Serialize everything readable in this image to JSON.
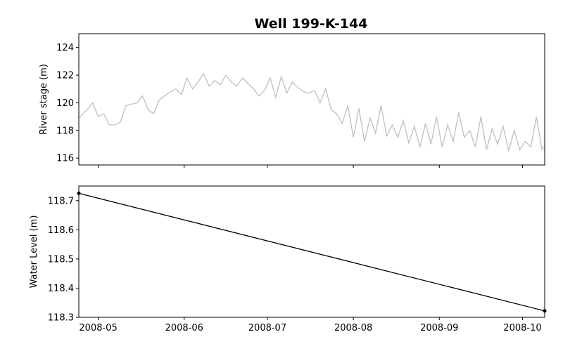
{
  "chart_data": {
    "title": "Well 199-K-144",
    "type": "line",
    "x_tick_labels": [
      "2008-05",
      "2008-06",
      "2008-07",
      "2008-08",
      "2008-09",
      "2008-10"
    ],
    "x_range": [
      "2008-04-24",
      "2008-10-09"
    ],
    "panels": [
      {
        "name": "river-stage",
        "ylabel": "River stage (m)",
        "ylim": [
          115.5,
          125.0
        ],
        "yticks": [
          116,
          118,
          120,
          122,
          124
        ],
        "color": "#bfbfbf",
        "series": {
          "x": [
            "2008-04-24",
            "2008-04-27",
            "2008-04-29",
            "2008-05-01",
            "2008-05-03",
            "2008-05-05",
            "2008-05-07",
            "2008-05-09",
            "2008-05-11",
            "2008-05-13",
            "2008-05-15",
            "2008-05-17",
            "2008-05-19",
            "2008-05-21",
            "2008-05-23",
            "2008-05-25",
            "2008-05-27",
            "2008-05-29",
            "2008-05-31",
            "2008-06-02",
            "2008-06-04",
            "2008-06-06",
            "2008-06-08",
            "2008-06-10",
            "2008-06-12",
            "2008-06-14",
            "2008-06-16",
            "2008-06-18",
            "2008-06-20",
            "2008-06-22",
            "2008-06-24",
            "2008-06-26",
            "2008-06-28",
            "2008-06-30",
            "2008-07-02",
            "2008-07-04",
            "2008-07-06",
            "2008-07-08",
            "2008-07-10",
            "2008-07-12",
            "2008-07-14",
            "2008-07-16",
            "2008-07-18",
            "2008-07-20",
            "2008-07-22",
            "2008-07-24",
            "2008-07-26",
            "2008-07-28",
            "2008-07-30",
            "2008-08-01",
            "2008-08-03",
            "2008-08-05",
            "2008-08-07",
            "2008-08-09",
            "2008-08-11",
            "2008-08-13",
            "2008-08-15",
            "2008-08-17",
            "2008-08-19",
            "2008-08-21",
            "2008-08-23",
            "2008-08-25",
            "2008-08-27",
            "2008-08-29",
            "2008-08-31",
            "2008-09-02",
            "2008-09-04",
            "2008-09-06",
            "2008-09-08",
            "2008-09-10",
            "2008-09-12",
            "2008-09-14",
            "2008-09-16",
            "2008-09-18",
            "2008-09-20",
            "2008-09-22",
            "2008-09-24",
            "2008-09-26",
            "2008-09-28",
            "2008-09-30",
            "2008-10-02",
            "2008-10-04",
            "2008-10-06",
            "2008-10-08",
            "2008-10-09"
          ],
          "y": [
            118.9,
            119.5,
            120.0,
            119.0,
            119.2,
            118.4,
            118.4,
            118.6,
            119.8,
            119.9,
            120.0,
            120.5,
            119.5,
            119.2,
            120.2,
            120.5,
            120.8,
            121.0,
            120.6,
            121.8,
            121.0,
            121.5,
            122.1,
            121.2,
            121.6,
            121.3,
            122.0,
            121.5,
            121.2,
            121.8,
            121.4,
            121.0,
            120.5,
            120.9,
            121.8,
            120.4,
            121.9,
            120.7,
            121.5,
            121.1,
            120.8,
            120.7,
            120.9,
            120.0,
            121.0,
            119.5,
            119.2,
            118.5,
            119.8,
            117.5,
            119.6,
            117.2,
            118.9,
            117.8,
            119.8,
            117.6,
            118.4,
            117.5,
            118.7,
            117.1,
            118.3,
            116.8,
            118.5,
            117.0,
            119.0,
            116.8,
            118.4,
            117.2,
            119.3,
            117.5,
            118.0,
            116.8,
            119.0,
            116.6,
            118.1,
            117.0,
            118.3,
            116.5,
            118.0,
            116.6,
            117.2,
            116.8,
            119.0,
            116.6,
            116.9
          ]
        }
      },
      {
        "name": "water-level",
        "ylabel": "Water Level (m)",
        "ylim": [
          118.3,
          118.75
        ],
        "yticks": [
          "118.3",
          "118.4",
          "118.5",
          "118.6",
          "118.7"
        ],
        "color": "#000000",
        "series": {
          "x": [
            "2008-04-24",
            "2008-10-09"
          ],
          "y": [
            118.725,
            118.322
          ]
        }
      }
    ]
  }
}
